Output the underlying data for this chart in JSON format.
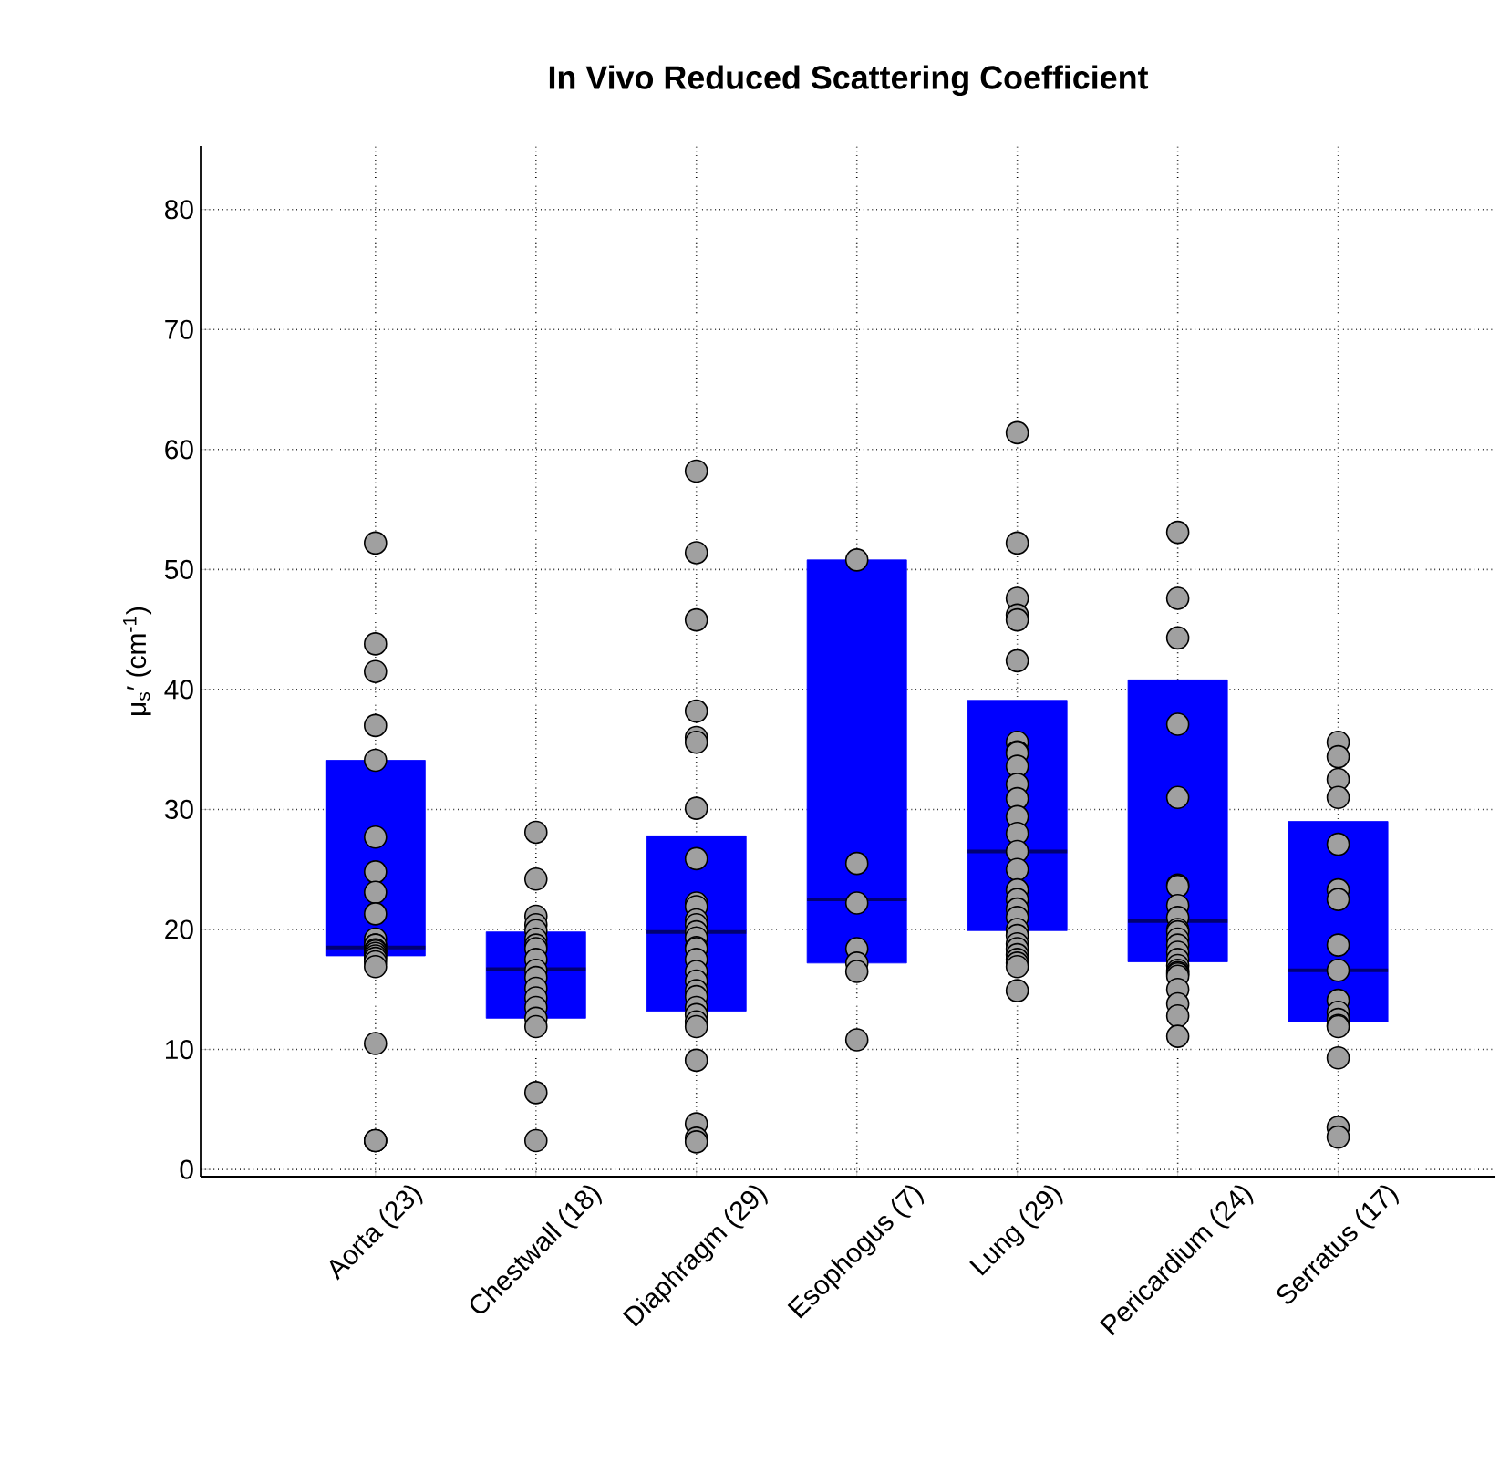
{
  "chart_data": {
    "type": "box",
    "title": "In Vivo Reduced Scattering Coefficient",
    "ylabel": "μ$_{s}$′ (cm$^{-1}$)",
    "categories": [
      "Aorta (23)",
      "Chestwall (18)",
      "Diaphragm (29)",
      "Esophogus (7)",
      "Lung (29)",
      "Pericardium (24)",
      "Serratus (17)"
    ],
    "ylim": [
      -0.6,
      85.3
    ],
    "yticks": [
      0,
      10,
      20,
      30,
      40,
      50,
      60,
      70,
      80
    ],
    "grid": true,
    "series": [
      {
        "type": "box",
        "color": "#0000ff",
        "boxes": [
          {
            "low": 17.8,
            "q1": 17.8,
            "median": 18.5,
            "q3": 34.1,
            "high": 34.1
          },
          {
            "low": 12.6,
            "q1": 12.6,
            "median": 16.7,
            "q3": 19.8,
            "high": 19.8
          },
          {
            "low": 13.2,
            "q1": 13.2,
            "median": 19.8,
            "q3": 27.8,
            "high": 27.8
          },
          {
            "low": 17.2,
            "q1": 17.2,
            "median": 22.5,
            "q3": 50.8,
            "high": 50.8
          },
          {
            "low": 19.9,
            "q1": 19.9,
            "median": 26.5,
            "q3": 39.1,
            "high": 39.1
          },
          {
            "low": 17.3,
            "q1": 17.3,
            "median": 20.7,
            "q3": 40.8,
            "high": 40.8
          },
          {
            "low": 12.3,
            "q1": 12.3,
            "median": 16.6,
            "q3": 29.0,
            "high": 29.0
          }
        ]
      },
      {
        "type": "scatter",
        "color": "#a0a0a0",
        "x": [
          "Aorta (23)",
          "Aorta (23)",
          "Aorta (23)",
          "Aorta (23)",
          "Aorta (23)",
          "Aorta (23)",
          "Aorta (23)",
          "Aorta (23)",
          "Aorta (23)",
          "Aorta (23)",
          "Aorta (23)",
          "Aorta (23)",
          "Aorta (23)",
          "Aorta (23)",
          "Aorta (23)",
          "Aorta (23)",
          "Aorta (23)",
          "Aorta (23)",
          "Aorta (23)",
          "Aorta (23)",
          "Aorta (23)",
          "Aorta (23)",
          "Aorta (23)",
          "Chestwall (18)",
          "Chestwall (18)",
          "Chestwall (18)",
          "Chestwall (18)",
          "Chestwall (18)",
          "Chestwall (18)",
          "Chestwall (18)",
          "Chestwall (18)",
          "Chestwall (18)",
          "Chestwall (18)",
          "Chestwall (18)",
          "Chestwall (18)",
          "Chestwall (18)",
          "Chestwall (18)",
          "Chestwall (18)",
          "Chestwall (18)",
          "Chestwall (18)",
          "Chestwall (18)",
          "Diaphragm (29)",
          "Diaphragm (29)",
          "Diaphragm (29)",
          "Diaphragm (29)",
          "Diaphragm (29)",
          "Diaphragm (29)",
          "Diaphragm (29)",
          "Diaphragm (29)",
          "Diaphragm (29)",
          "Diaphragm (29)",
          "Diaphragm (29)",
          "Diaphragm (29)",
          "Diaphragm (29)",
          "Diaphragm (29)",
          "Diaphragm (29)",
          "Diaphragm (29)",
          "Diaphragm (29)",
          "Diaphragm (29)",
          "Diaphragm (29)",
          "Diaphragm (29)",
          "Diaphragm (29)",
          "Diaphragm (29)",
          "Diaphragm (29)",
          "Diaphragm (29)",
          "Diaphragm (29)",
          "Diaphragm (29)",
          "Diaphragm (29)",
          "Diaphragm (29)",
          "Diaphragm (29)",
          "Esophogus (7)",
          "Esophogus (7)",
          "Esophogus (7)",
          "Esophogus (7)",
          "Esophogus (7)",
          "Esophogus (7)",
          "Esophogus (7)",
          "Lung (29)",
          "Lung (29)",
          "Lung (29)",
          "Lung (29)",
          "Lung (29)",
          "Lung (29)",
          "Lung (29)",
          "Lung (29)",
          "Lung (29)",
          "Lung (29)",
          "Lung (29)",
          "Lung (29)",
          "Lung (29)",
          "Lung (29)",
          "Lung (29)",
          "Lung (29)",
          "Lung (29)",
          "Lung (29)",
          "Lung (29)",
          "Lung (29)",
          "Lung (29)",
          "Lung (29)",
          "Lung (29)",
          "Lung (29)",
          "Lung (29)",
          "Lung (29)",
          "Lung (29)",
          "Lung (29)",
          "Lung (29)",
          "Pericardium (24)",
          "Pericardium (24)",
          "Pericardium (24)",
          "Pericardium (24)",
          "Pericardium (24)",
          "Pericardium (24)",
          "Pericardium (24)",
          "Pericardium (24)",
          "Pericardium (24)",
          "Pericardium (24)",
          "Pericardium (24)",
          "Pericardium (24)",
          "Pericardium (24)",
          "Pericardium (24)",
          "Pericardium (24)",
          "Pericardium (24)",
          "Pericardium (24)",
          "Pericardium (24)",
          "Pericardium (24)",
          "Pericardium (24)",
          "Pericardium (24)",
          "Pericardium (24)",
          "Pericardium (24)",
          "Pericardium (24)",
          "Serratus (17)",
          "Serratus (17)",
          "Serratus (17)",
          "Serratus (17)",
          "Serratus (17)",
          "Serratus (17)",
          "Serratus (17)",
          "Serratus (17)",
          "Serratus (17)",
          "Serratus (17)",
          "Serratus (17)",
          "Serratus (17)",
          "Serratus (17)",
          "Serratus (17)",
          "Serratus (17)",
          "Serratus (17)",
          "Serratus (17)"
        ],
        "values": [
          52.2,
          43.8,
          41.5,
          37,
          34.1,
          27.7,
          24.8,
          23.1,
          21.3,
          19.2,
          18.7,
          18.7,
          18.3,
          18.2,
          18,
          17.8,
          17.6,
          17.3,
          16.9,
          10.5,
          2.4,
          2.4,
          2.4,
          28.1,
          24.2,
          21.1,
          20.4,
          19.9,
          19.2,
          18.7,
          18.4,
          17.5,
          16.6,
          16,
          15.1,
          14.3,
          13.5,
          12.6,
          11.9,
          6.4,
          2.4,
          58.2,
          51.4,
          45.8,
          38.2,
          36,
          35.6,
          30.1,
          25.9,
          22.2,
          21.9,
          20.8,
          20.4,
          19.8,
          19.3,
          18.5,
          18.4,
          17.5,
          16.5,
          15.7,
          14.9,
          14.4,
          13.5,
          12.9,
          12.3,
          11.9,
          9.1,
          3.8,
          2.6,
          2.3,
          50.8,
          25.5,
          22.2,
          18.4,
          17.2,
          16.5,
          10.8,
          61.4,
          52.2,
          47.6,
          46.2,
          45.8,
          42.4,
          35.6,
          34.8,
          34.7,
          33.6,
          32.1,
          30.9,
          29.4,
          28,
          26.5,
          25,
          23.3,
          22.5,
          21.7,
          21,
          20,
          19.5,
          18.8,
          18.4,
          17.9,
          17.5,
          17.2,
          16.9,
          14.9,
          53.1,
          47.6,
          44.3,
          37.1,
          31,
          23.7,
          23.6,
          22,
          21,
          20,
          19.8,
          19.2,
          18.7,
          18.1,
          17.5,
          17,
          16.6,
          16.4,
          16.3,
          16.1,
          15,
          13.8,
          12.8,
          11.1,
          35.6,
          34.4,
          32.5,
          31,
          27.1,
          23.3,
          22.5,
          18.7,
          16.6,
          14.1,
          13.1,
          12.5,
          12,
          11.9,
          9.3,
          3.5,
          2.7
        ]
      }
    ]
  }
}
